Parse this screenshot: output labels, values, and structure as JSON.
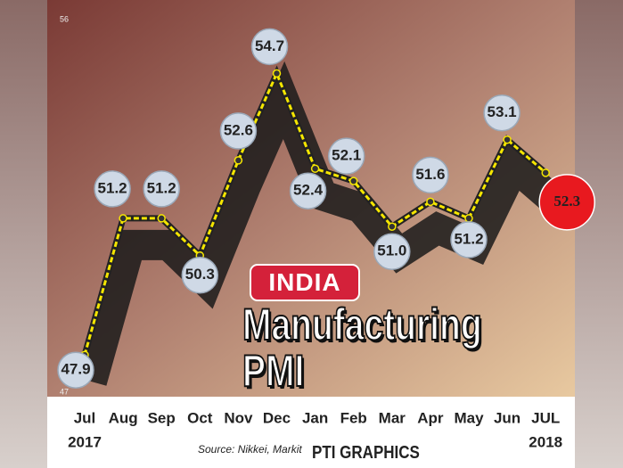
{
  "chart_data": {
    "type": "line",
    "title": "INDIA",
    "subtitle": "Manufacturing PMI",
    "categories": [
      "Jul",
      "Aug",
      "Sep",
      "Oct",
      "Nov",
      "Dec",
      "Jan",
      "Feb",
      "Mar",
      "Apr",
      "May",
      "Jun",
      "JUL"
    ],
    "annotations": [
      "2017",
      "2018"
    ],
    "values": [
      47.9,
      51.2,
      51.2,
      50.3,
      52.6,
      54.7,
      52.4,
      52.1,
      51.0,
      51.6,
      51.2,
      53.1,
      52.3
    ],
    "value_labels": [
      "47.9",
      "51.2",
      "51.2",
      "50.3",
      "52.6",
      "54.7",
      "52.4",
      "52.1",
      "51.0",
      "51.6",
      "51.2",
      "53.1",
      "52.3"
    ],
    "color": "#f5e600",
    "ylim": [
      47,
      56
    ],
    "yticks": [
      47,
      56
    ],
    "source": "Source: Nikkei, Markit",
    "credit": "PTI GRAPHICS"
  }
}
